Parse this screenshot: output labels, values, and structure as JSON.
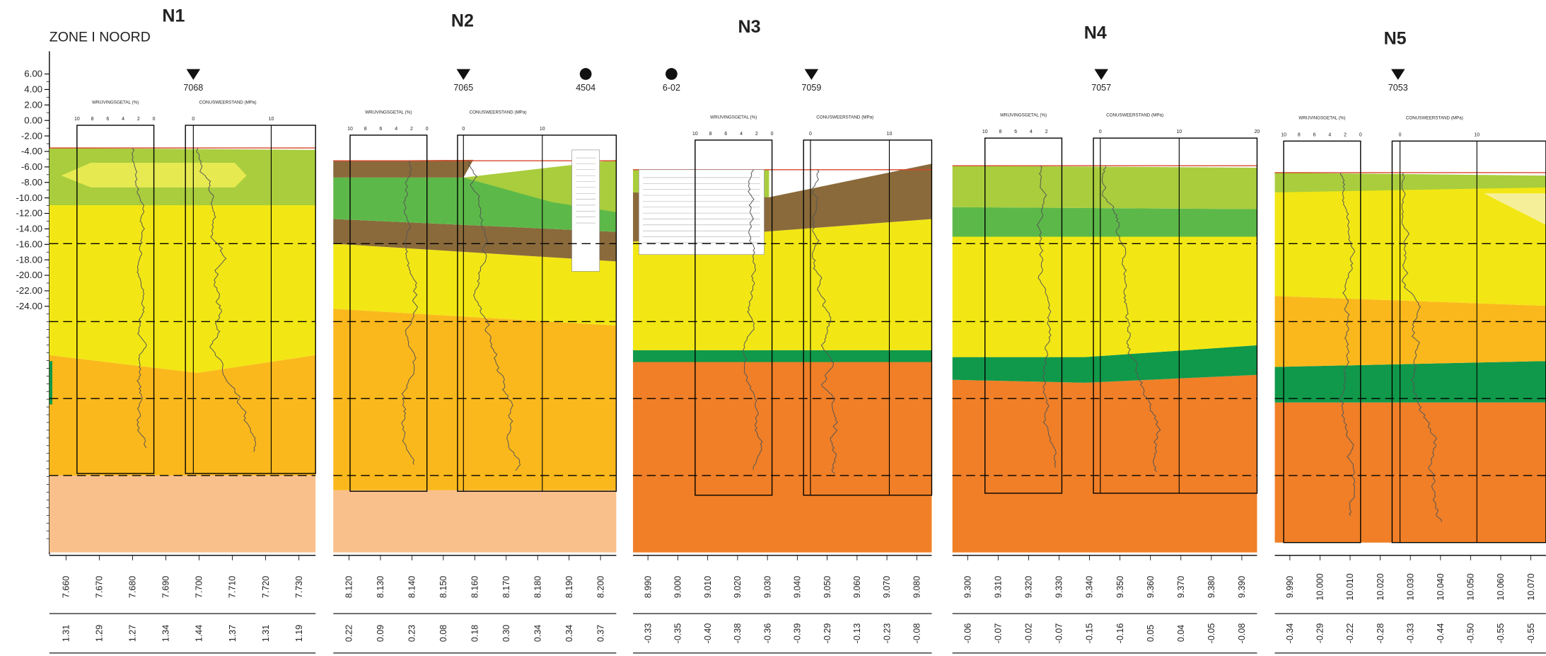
{
  "zone": "ZONE I NOORD",
  "depth_axis": [
    "6.00",
    "4.00",
    "2.00",
    "0.00",
    "-2.00",
    "-4.00",
    "-6.00",
    "-8.00",
    "-10.00",
    "-12.00",
    "-14.00",
    "-16.00",
    "-18.00",
    "-20.00",
    "-22.00",
    "-24.00"
  ],
  "panels": [
    {
      "title": "N1",
      "boreholes": [
        {
          "label": "7068",
          "symbol": "triangle"
        }
      ],
      "friction_label": "WRIJVINGSGETAL (%)",
      "friction_scale": [
        "10",
        "8",
        "6",
        "4",
        "2",
        "0"
      ],
      "cone_label": "CONUSWEERSTAND (MPa)",
      "cone_scale": [
        "0",
        "10"
      ],
      "distances": [
        "7.660",
        "7.670",
        "7.680",
        "7.690",
        "7.700",
        "7.710",
        "7.720",
        "7.730"
      ],
      "levels": [
        "1.31",
        "1.29",
        "1.27",
        "1.34",
        "1.44",
        "1.37",
        "1.31",
        "1.19"
      ]
    },
    {
      "title": "N2",
      "boreholes": [
        {
          "label": "7065",
          "symbol": "triangle"
        },
        {
          "label": "4504",
          "symbol": "circle"
        }
      ],
      "friction_label": "WRIJVINGSGETAL (%)",
      "friction_scale": [
        "10",
        "8",
        "6",
        "4",
        "2",
        "0"
      ],
      "cone_label": "CONUSWEERSTAND (MPa)",
      "cone_scale": [
        "0",
        "10"
      ],
      "distances": [
        "8.120",
        "8.130",
        "8.140",
        "8.150",
        "8.160",
        "8.170",
        "8.180",
        "8.190",
        "8.200"
      ],
      "levels": [
        "0.22",
        "0.09",
        "0.23",
        "0.08",
        "0.18",
        "0.30",
        "0.34",
        "0.34",
        "0.37"
      ]
    },
    {
      "title": "N3",
      "boreholes": [
        {
          "label": "6-02",
          "symbol": "circle"
        },
        {
          "label": "7059",
          "symbol": "triangle"
        }
      ],
      "friction_label": "WRIJVINGSGETAL (%)",
      "friction_scale": [
        "10",
        "8",
        "6",
        "4",
        "2",
        "0"
      ],
      "cone_label": "CONUSWEERSTAND (MPa)",
      "cone_scale": [
        "0",
        "10"
      ],
      "distances": [
        "8.990",
        "9.000",
        "9.010",
        "9.020",
        "9.030",
        "9.040",
        "9.050",
        "9.060",
        "9.070",
        "9.080"
      ],
      "levels": [
        "-0.33",
        "-0.35",
        "-0.40",
        "-0.38",
        "-0.36",
        "-0.39",
        "-0.29",
        "-0.13",
        "-0.23",
        "-0.08"
      ]
    },
    {
      "title": "N4",
      "boreholes": [
        {
          "label": "7057",
          "symbol": "triangle"
        }
      ],
      "friction_label": "WRIJVINGSGETAL (%)",
      "friction_scale": [
        "10",
        "8",
        "6",
        "4",
        "2"
      ],
      "cone_label": "CONUSWEERSTAND (MPa)",
      "cone_scale": [
        "0",
        "10",
        "20"
      ],
      "distances": [
        "9.300",
        "9.310",
        "9.320",
        "9.330",
        "9.340",
        "9.350",
        "9.360",
        "9.370",
        "9.380",
        "9.390"
      ],
      "levels": [
        "-0.06",
        "-0.07",
        "-0.02",
        "-0.07",
        "-0.15",
        "-0.16",
        "0.05",
        "0.04",
        "-0.05",
        "-0.08"
      ]
    },
    {
      "title": "N5",
      "boreholes": [
        {
          "label": "7053",
          "symbol": "triangle"
        }
      ],
      "friction_label": "WRIJVINGSGETAL (%)",
      "friction_scale": [
        "10",
        "8",
        "6",
        "4",
        "2",
        "0"
      ],
      "cone_label": "CONUSWEERSTAND (MPa)",
      "cone_scale": [
        "0",
        "10"
      ],
      "distances": [
        "9.990",
        "10.000",
        "10.010",
        "10.020",
        "10.030",
        "10.040",
        "10.050",
        "10.060",
        "10.070"
      ],
      "levels": [
        "-0.34",
        "-0.29",
        "-0.22",
        "-0.28",
        "-0.33",
        "-0.44",
        "-0.50",
        "-0.55",
        "-0.55"
      ]
    }
  ]
}
